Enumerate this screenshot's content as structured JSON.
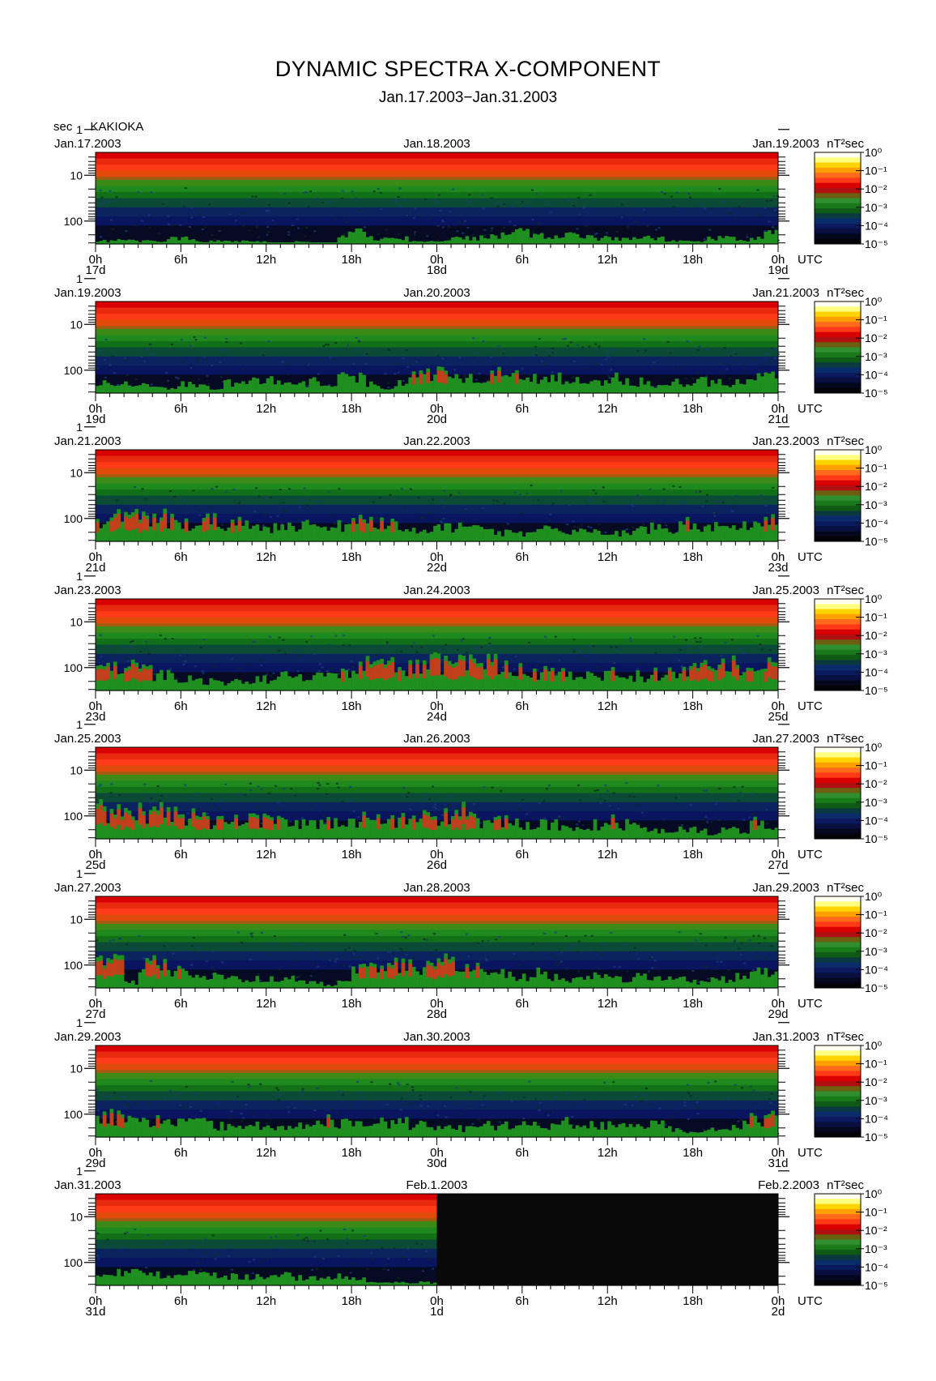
{
  "title": "DYNAMIC SPECTRA X-COMPONENT",
  "subtitle": "Jan.17.2003−Jan.31.2003",
  "y_unit": "sec",
  "station": "KAKIOKA",
  "colorbar_unit": "nT²sec",
  "chart_data": {
    "type": "heatmap",
    "title": "DYNAMIC SPECTRA X-COMPONENT",
    "subtitle": "Jan.17.2003−Jan.31.2003",
    "station": "KAKIOKA",
    "ylabel": "sec",
    "yscale": "log",
    "y_tick_labels": [
      "1",
      "10",
      "100"
    ],
    "x_tick_labels": [
      "0h",
      "6h",
      "12h",
      "18h",
      "0h",
      "6h",
      "12h",
      "18h",
      "0h"
    ],
    "x_unit_label": "UTC",
    "colorbar": {
      "label": "nT²sec",
      "scale": "log",
      "tick_labels": [
        "10⁰",
        "10⁻¹",
        "10⁻²",
        "10⁻³",
        "10⁻⁴",
        "10⁻⁵"
      ]
    },
    "panels": [
      {
        "left_date": "Jan.17.2003",
        "center_date": "Jan.18.2003",
        "right_date": "Jan.19.2003",
        "day_labels": [
          "17d",
          "18d",
          "19d"
        ],
        "no_data_from_fraction": null,
        "activity": [
          0.05,
          0.1,
          0.1,
          0.05,
          0.05,
          0.1,
          0.1,
          0.05,
          0.05,
          0.05,
          0.05,
          0.05,
          0.0,
          0.0,
          0.05,
          0.0,
          0.0,
          0.15,
          0.2,
          0.1,
          0.1,
          0.1,
          0.05,
          0.05,
          0.05,
          0.1,
          0.1,
          0.15,
          0.15,
          0.2,
          0.2,
          0.15,
          0.15,
          0.15,
          0.15,
          0.1,
          0.1,
          0.1,
          0.1,
          0.1,
          0.05,
          0.05,
          0.05,
          0.1,
          0.1,
          0.05,
          0.1,
          0.2
        ]
      },
      {
        "left_date": "Jan.19.2003",
        "center_date": "Jan.20.2003",
        "right_date": "Jan.21.2003",
        "day_labels": [
          "19d",
          "20d",
          "21d"
        ],
        "no_data_from_fraction": null,
        "activity": [
          0.2,
          0.15,
          0.15,
          0.15,
          0.1,
          0.1,
          0.15,
          0.15,
          0.1,
          0.2,
          0.2,
          0.2,
          0.25,
          0.15,
          0.15,
          0.2,
          0.1,
          0.3,
          0.25,
          0.15,
          0.1,
          0.2,
          0.3,
          0.3,
          0.35,
          0.3,
          0.25,
          0.3,
          0.35,
          0.3,
          0.25,
          0.2,
          0.25,
          0.2,
          0.2,
          0.2,
          0.25,
          0.2,
          0.2,
          0.15,
          0.2,
          0.15,
          0.2,
          0.2,
          0.1,
          0.2,
          0.25,
          0.3
        ]
      },
      {
        "left_date": "Jan.21.2003",
        "center_date": "Jan.22.2003",
        "right_date": "Jan.23.2003",
        "day_labels": [
          "21d",
          "22d",
          "23d"
        ],
        "no_data_from_fraction": null,
        "activity": [
          0.3,
          0.4,
          0.45,
          0.4,
          0.4,
          0.35,
          0.3,
          0.4,
          0.35,
          0.3,
          0.3,
          0.3,
          0.25,
          0.25,
          0.3,
          0.25,
          0.25,
          0.3,
          0.35,
          0.3,
          0.3,
          0.25,
          0.2,
          0.2,
          0.25,
          0.25,
          0.2,
          0.2,
          0.15,
          0.15,
          0.15,
          0.2,
          0.2,
          0.2,
          0.2,
          0.15,
          0.15,
          0.15,
          0.2,
          0.25,
          0.2,
          0.3,
          0.25,
          0.25,
          0.2,
          0.3,
          0.3,
          0.35
        ]
      },
      {
        "left_date": "Jan.23.2003",
        "center_date": "Jan.24.2003",
        "right_date": "Jan.25.2003",
        "day_labels": [
          "23d",
          "24d",
          "25d"
        ],
        "no_data_from_fraction": null,
        "activity": [
          0.35,
          0.45,
          0.45,
          0.35,
          0.3,
          0.25,
          0.2,
          0.15,
          0.15,
          0.15,
          0.2,
          0.2,
          0.2,
          0.25,
          0.2,
          0.25,
          0.3,
          0.35,
          0.4,
          0.45,
          0.45,
          0.45,
          0.5,
          0.5,
          0.5,
          0.5,
          0.45,
          0.45,
          0.45,
          0.35,
          0.3,
          0.3,
          0.3,
          0.25,
          0.25,
          0.25,
          0.3,
          0.25,
          0.25,
          0.3,
          0.35,
          0.4,
          0.45,
          0.45,
          0.45,
          0.45,
          0.45,
          0.45
        ]
      },
      {
        "left_date": "Jan.25.2003",
        "center_date": "Jan.26.2003",
        "right_date": "Jan.27.2003",
        "day_labels": [
          "25d",
          "26d",
          "27d"
        ],
        "no_data_from_fraction": null,
        "activity": [
          0.5,
          0.55,
          0.45,
          0.45,
          0.45,
          0.4,
          0.4,
          0.35,
          0.3,
          0.35,
          0.35,
          0.35,
          0.3,
          0.3,
          0.3,
          0.3,
          0.3,
          0.3,
          0.35,
          0.3,
          0.3,
          0.35,
          0.3,
          0.4,
          0.4,
          0.45,
          0.35,
          0.3,
          0.3,
          0.3,
          0.25,
          0.25,
          0.25,
          0.2,
          0.2,
          0.25,
          0.3,
          0.25,
          0.2,
          0.15,
          0.1,
          0.15,
          0.15,
          0.1,
          0.15,
          0.15,
          0.3,
          0.25
        ]
      },
      {
        "left_date": "Jan.27.2003",
        "center_date": "Jan.28.2003",
        "right_date": "Jan.29.2003",
        "day_labels": [
          "27d",
          "28d",
          "29d"
        ],
        "no_data_from_fraction": null,
        "activity": [
          0.45,
          0.45,
          0.1,
          0.4,
          0.45,
          0.3,
          0.25,
          0.2,
          0.2,
          0.15,
          0.15,
          0.15,
          0.15,
          0.15,
          0.1,
          0.1,
          0.05,
          0.1,
          0.35,
          0.4,
          0.45,
          0.45,
          0.4,
          0.35,
          0.45,
          0.4,
          0.35,
          0.25,
          0.25,
          0.2,
          0.2,
          0.25,
          0.2,
          0.15,
          0.2,
          0.2,
          0.15,
          0.15,
          0.2,
          0.2,
          0.15,
          0.15,
          0.1,
          0.15,
          0.15,
          0.2,
          0.3,
          0.35
        ]
      },
      {
        "left_date": "Jan.29.2003",
        "center_date": "Jan.30.2003",
        "right_date": "Jan.31.2003",
        "day_labels": [
          "29d",
          "30d",
          "31d"
        ],
        "no_data_from_fraction": null,
        "activity": [
          0.35,
          0.35,
          0.35,
          0.3,
          0.3,
          0.25,
          0.25,
          0.25,
          0.2,
          0.2,
          0.15,
          0.2,
          0.15,
          0.15,
          0.2,
          0.2,
          0.3,
          0.25,
          0.2,
          0.2,
          0.25,
          0.25,
          0.2,
          0.2,
          0.15,
          0.15,
          0.15,
          0.2,
          0.2,
          0.2,
          0.2,
          0.2,
          0.2,
          0.25,
          0.2,
          0.2,
          0.2,
          0.2,
          0.2,
          0.25,
          0.15,
          0.1,
          0.1,
          0.15,
          0.15,
          0.2,
          0.3,
          0.35
        ]
      },
      {
        "left_date": "Jan.31.2003",
        "center_date": "Feb.1.2003",
        "right_date": "Feb.2.2003",
        "day_labels": [
          "31d",
          "1d",
          "2d"
        ],
        "no_data_from_fraction": 0.5,
        "activity": [
          0.25,
          0.2,
          0.2,
          0.2,
          0.2,
          0.15,
          0.2,
          0.2,
          0.2,
          0.15,
          0.15,
          0.15,
          0.15,
          0.2,
          0.15,
          0.15,
          0.15,
          0.15,
          0.1,
          0.05,
          0.05,
          0.05,
          0.05,
          0.05
        ]
      }
    ]
  }
}
